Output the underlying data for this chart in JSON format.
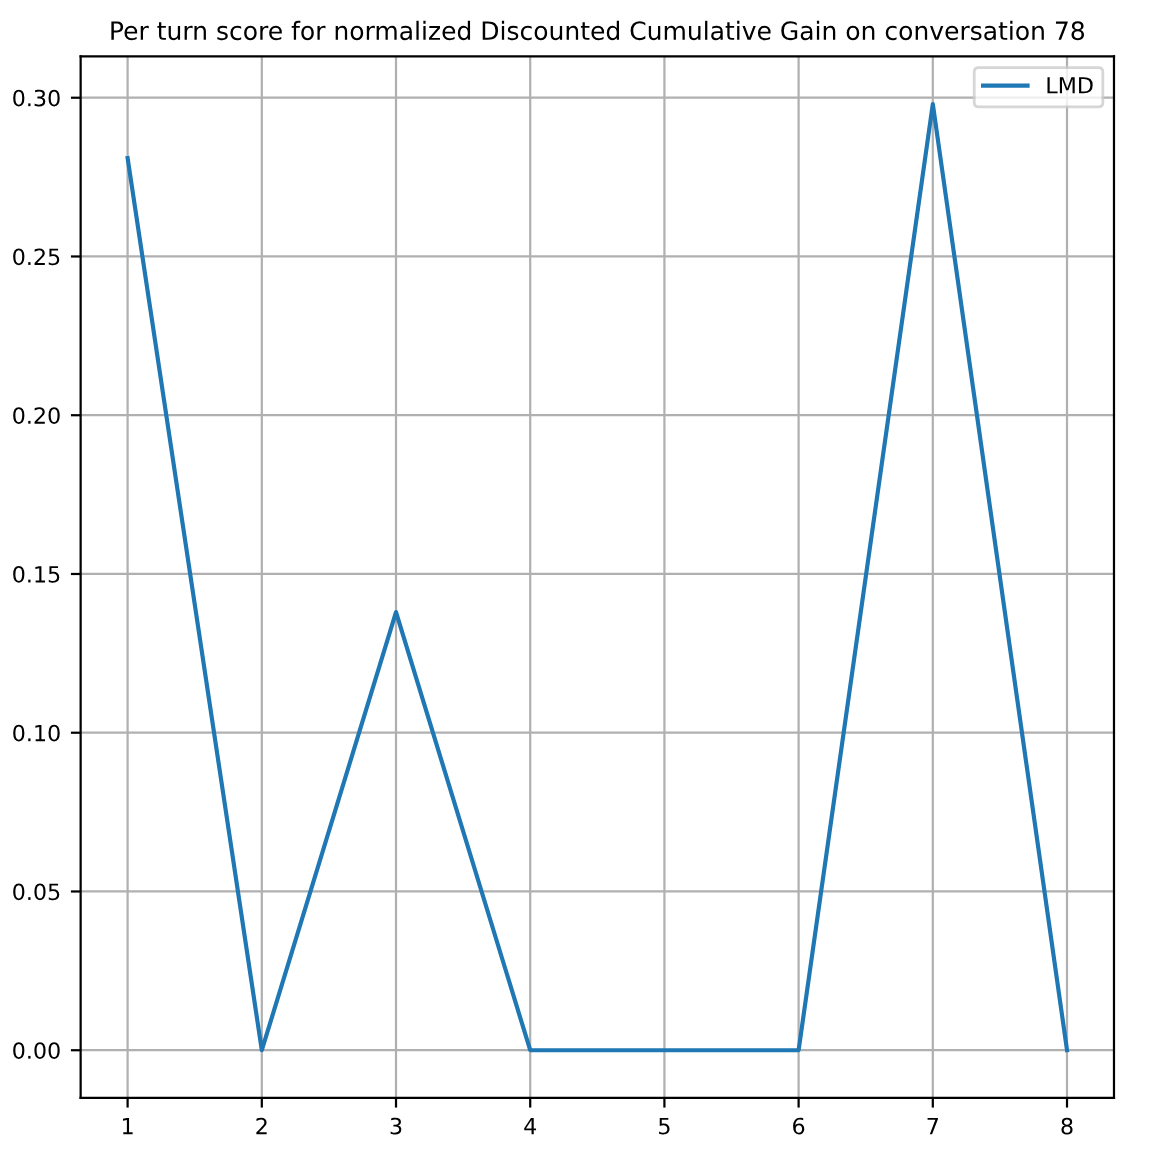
{
  "chart_data": {
    "type": "line",
    "title": "Per turn score for normalized Discounted Cumulative Gain on conversation 78",
    "x": [
      1,
      2,
      3,
      4,
      5,
      6,
      7,
      8
    ],
    "series": [
      {
        "name": "LMD",
        "color": "#1f77b4",
        "values": [
          0.281,
          0.0,
          0.138,
          0.0,
          0.0,
          0.0,
          0.298,
          0.0
        ]
      }
    ],
    "xlim": [
      0.65,
      8.35
    ],
    "xticks": [
      1,
      2,
      3,
      4,
      5,
      6,
      7,
      8
    ],
    "ylim": [
      -0.015,
      0.313
    ],
    "yticks": [
      {
        "value": 0,
        "label": "0.00"
      },
      {
        "value": 0.05,
        "label": "0.05"
      },
      {
        "value": 0.1,
        "label": "0.10"
      },
      {
        "value": 0.15,
        "label": "0.15"
      },
      {
        "value": 0.2,
        "label": "0.20"
      },
      {
        "value": 0.25,
        "label": "0.25"
      },
      {
        "value": 0.3,
        "label": "0.30"
      }
    ],
    "grid": true,
    "legend": "top right",
    "marker": "none",
    "line_style": "solid"
  }
}
